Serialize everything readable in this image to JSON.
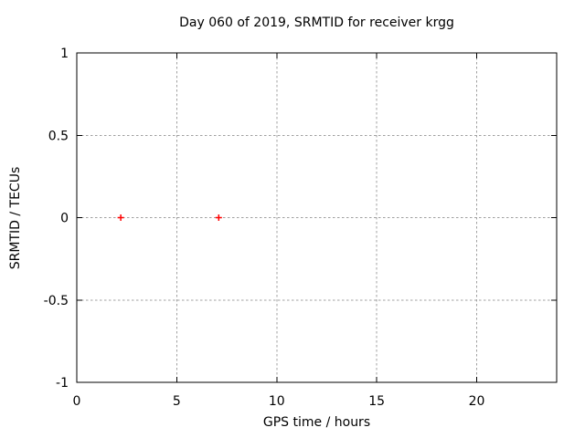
{
  "chart_data": {
    "type": "scatter",
    "title": "Day 060 of 2019, SRMTID for receiver krgg",
    "xlabel": "GPS time / hours",
    "ylabel": "SRMTID / TECUs",
    "xlim": [
      0,
      24
    ],
    "ylim": [
      -1,
      1
    ],
    "xticks": [
      0,
      5,
      10,
      15,
      20
    ],
    "yticks": [
      -1,
      -0.5,
      0,
      0.5,
      1
    ],
    "grid": true,
    "grid_style": "dashed",
    "legend": null,
    "series": [
      {
        "marker": "plus",
        "color": "#ff0000",
        "points": [
          [
            2.2,
            0.0
          ],
          [
            7.1,
            0.0
          ]
        ]
      }
    ],
    "colors": {
      "background": "#ffffff",
      "axis": "#000000",
      "text": "#000000",
      "grid": "#a0a0a0",
      "marker": "#ff0000"
    }
  }
}
